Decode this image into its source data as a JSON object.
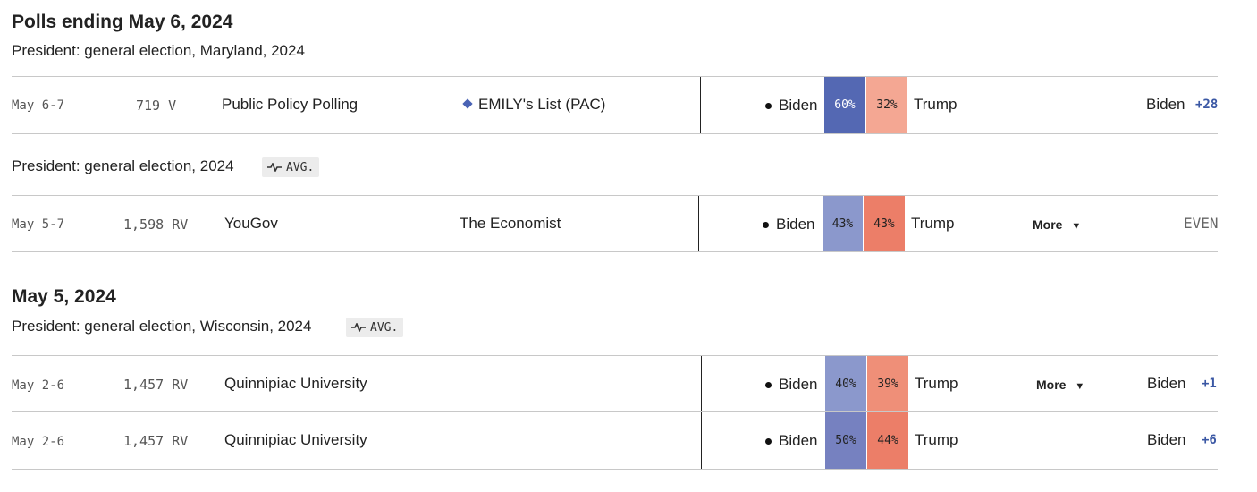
{
  "sections": [
    {
      "heading": "Polls ending May 6, 2024"
    },
    {
      "heading": "May 5, 2024"
    }
  ],
  "groups": [
    {
      "title": "President: general election, Maryland, 2024",
      "avg": ""
    },
    {
      "title": "President: general election, 2024",
      "avg": "AVG."
    },
    {
      "title": "President: general election, Wisconsin, 2024",
      "avg": "AVG."
    }
  ],
  "polls": [
    {
      "dates": "May 6-7",
      "sample": "719",
      "pop": "V",
      "pollster": "Public Policy Polling",
      "sponsor": "EMILY's List (PAC)",
      "cand1": "Biden",
      "pct1": "60%",
      "cand2": "Trump",
      "pct2": "32%",
      "more": "",
      "leader": "Biden",
      "margin": "+28"
    },
    {
      "dates": "May 5-7",
      "sample": "1,598",
      "pop": "RV",
      "pollster": "YouGov",
      "sponsor": "The Economist",
      "cand1": "Biden",
      "pct1": "43%",
      "cand2": "Trump",
      "pct2": "43%",
      "more": "More",
      "leader": "",
      "margin": "EVEN"
    },
    {
      "dates": "May 2-6",
      "sample": "1,457",
      "pop": "RV",
      "pollster": "Quinnipiac University",
      "sponsor": "",
      "cand1": "Biden",
      "pct1": "40%",
      "cand2": "Trump",
      "pct2": "39%",
      "more": "More",
      "leader": "Biden",
      "margin": "+1"
    },
    {
      "dates": "May 2-6",
      "sample": "1,457",
      "pop": "RV",
      "pollster": "Quinnipiac University",
      "sponsor": "",
      "cand1": "Biden",
      "pct1": "50%",
      "cand2": "Trump",
      "pct2": "44%",
      "more": "",
      "leader": "Biden",
      "margin": "+6"
    }
  ],
  "colors": {
    "biden_strong": "#5468b3",
    "biden_light": "#8b98cc",
    "biden_mid": "#7681c0",
    "trump_light": "#f4a793",
    "trump_strong": "#ec7e68",
    "trump_mid": "#ef8f78",
    "margin_blue": "#3a57a4"
  }
}
